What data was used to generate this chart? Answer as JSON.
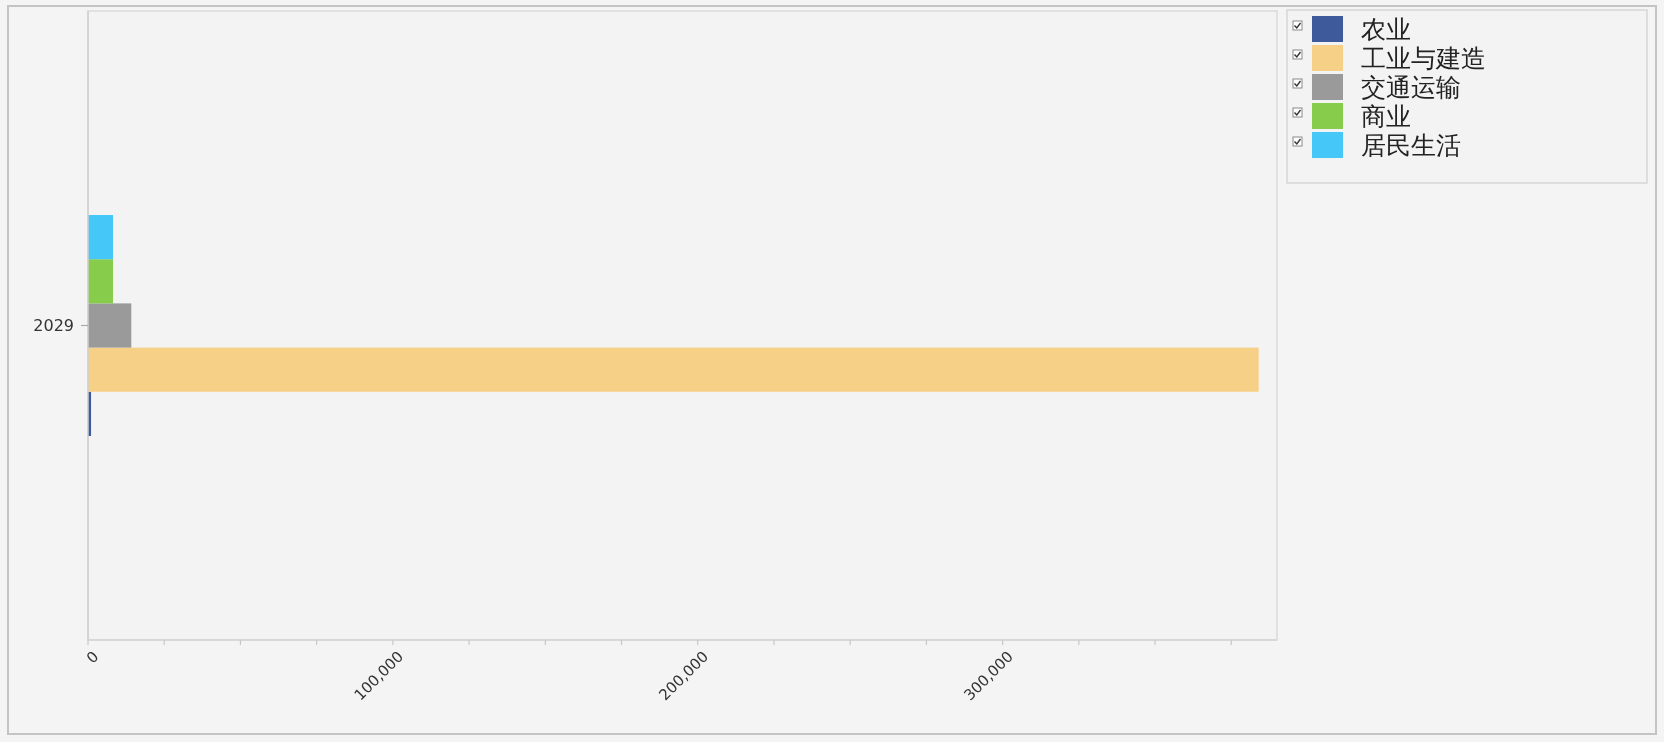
{
  "chart_data": {
    "type": "bar",
    "orientation": "horizontal",
    "categories": [
      "2029"
    ],
    "series": [
      {
        "name": "农业",
        "color": "#3f5a9a",
        "values": [
          1000
        ]
      },
      {
        "name": "工业与建造",
        "color": "#f7d088",
        "values": [
          384000
        ]
      },
      {
        "name": "交通运输",
        "color": "#9a9a9a",
        "values": [
          14200
        ]
      },
      {
        "name": "商业",
        "color": "#88cc4c",
        "values": [
          8200
        ]
      },
      {
        "name": "居民生活",
        "color": "#45c8f8",
        "values": [
          8200
        ]
      }
    ],
    "xlim": [
      0,
      390000
    ],
    "xticks": [
      0,
      {
        "value": 25000,
        "label": null
      },
      {
        "value": 50000,
        "label": null
      },
      {
        "value": 75000,
        "label": null
      },
      {
        "value": 100000,
        "label": "100,000"
      },
      {
        "value": 125000,
        "label": null
      },
      {
        "value": 150000,
        "label": null
      },
      {
        "value": 175000,
        "label": null
      },
      {
        "value": 200000,
        "label": "200,000"
      },
      {
        "value": 225000,
        "label": null
      },
      {
        "value": 250000,
        "label": null
      },
      {
        "value": 275000,
        "label": null
      },
      {
        "value": 300000,
        "label": "300,000"
      },
      {
        "value": 325000,
        "label": null
      },
      {
        "value": 350000,
        "label": null
      },
      {
        "value": 375000,
        "label": null
      }
    ],
    "legend": "top right"
  }
}
